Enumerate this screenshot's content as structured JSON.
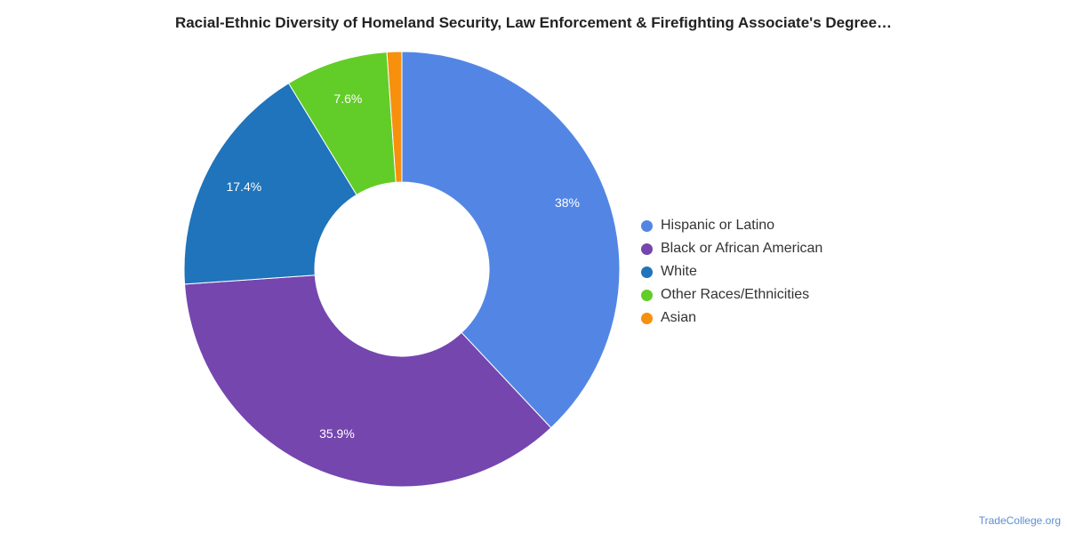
{
  "title": "Racial-Ethnic Diversity of Homeland Security, Law Enforcement & Firefighting Associate's Degree…",
  "credit": "TradeCollege.org",
  "chart_data": {
    "type": "pie",
    "variant": "donut",
    "title": "Racial-Ethnic Diversity of Homeland Security, Law Enforcement & Firefighting Associate's Degree…",
    "legend_position": "right",
    "slices": [
      {
        "name": "Hispanic or Latino",
        "value": 38,
        "label": "38%",
        "color": "#5386e4"
      },
      {
        "name": "Black or African American",
        "value": 35.9,
        "label": "35.9%",
        "color": "#7446ae"
      },
      {
        "name": "White",
        "value": 17.4,
        "label": "17.4%",
        "color": "#1f74bb"
      },
      {
        "name": "Other Races/Ethnicities",
        "value": 7.6,
        "label": "7.6%",
        "color": "#62cd28"
      },
      {
        "name": "Asian",
        "value": 1.1,
        "label": "",
        "color": "#f7900d"
      }
    ]
  }
}
